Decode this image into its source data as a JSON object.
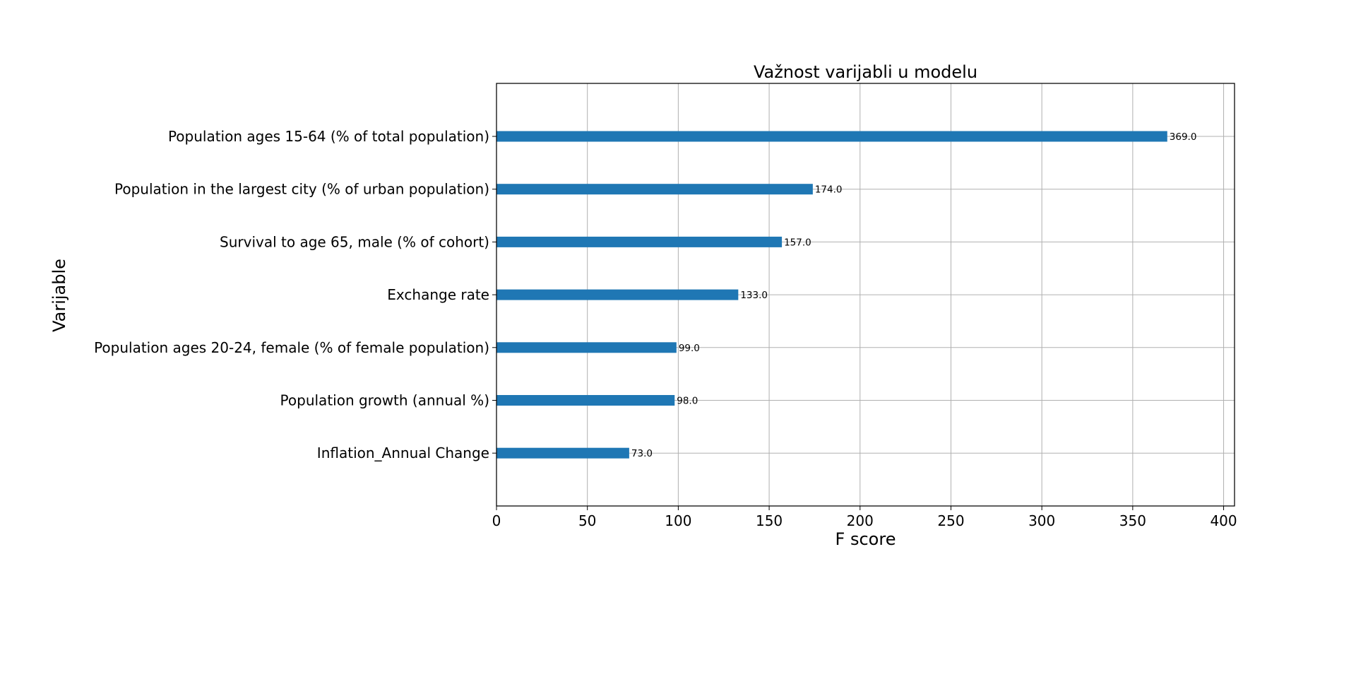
{
  "chart_data": {
    "type": "bar",
    "orientation": "horizontal",
    "title": "Važnost varijabli u modelu",
    "xlabel": "F score",
    "ylabel": "Varijable",
    "categories": [
      "Population ages 15-64 (% of total population)",
      "Population in the largest city (% of urban population)",
      "Survival to age 65, male (% of cohort)",
      "Exchange rate",
      "Population ages 20-24, female (% of female population)",
      "Population growth (annual %)",
      "Inflation_Annual Change"
    ],
    "values": [
      369,
      174,
      157,
      133,
      99,
      98,
      73
    ],
    "value_labels": [
      "369.0",
      "174.0",
      "157.0",
      "133.0",
      "99.0",
      "98.0",
      "73.0"
    ],
    "xlim": [
      0,
      406
    ],
    "xticks": [
      0,
      50,
      100,
      150,
      200,
      250,
      300,
      350,
      400
    ],
    "grid": true,
    "bar_color": "#1f77b4"
  }
}
